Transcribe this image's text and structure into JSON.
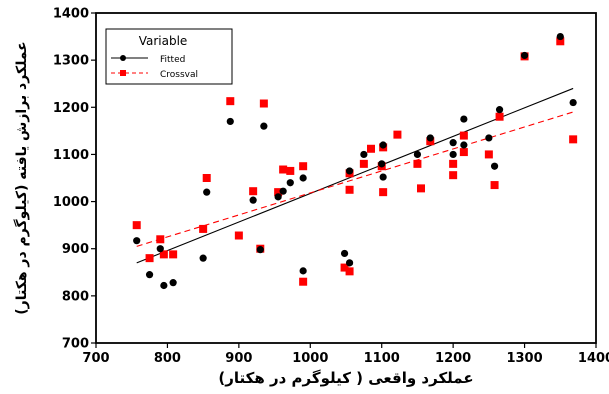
{
  "chart_data": {
    "type": "scatter",
    "xlabel": "عملکرد واقعی ( کیلوگرم در هکتار)",
    "ylabel": "عملکرد برازش یافته (کیلوگرم در هکتار)",
    "xlim": [
      700,
      1400
    ],
    "ylim": [
      700,
      1400
    ],
    "xticks": [
      700,
      800,
      900,
      1000,
      1100,
      1200,
      1300,
      1400
    ],
    "yticks": [
      700,
      800,
      900,
      1000,
      1100,
      1200,
      1300,
      1400
    ],
    "grid": false,
    "legend": {
      "title": "Variable",
      "position": "top-left"
    },
    "series": [
      {
        "name": "Fitted",
        "color": "#000000",
        "marker": "circle",
        "points": [
          [
            757,
            917
          ],
          [
            775,
            845
          ],
          [
            790,
            900
          ],
          [
            795,
            822
          ],
          [
            808,
            828
          ],
          [
            850,
            880
          ],
          [
            855,
            1020
          ],
          [
            888,
            1170
          ],
          [
            920,
            1003
          ],
          [
            930,
            898
          ],
          [
            935,
            1160
          ],
          [
            955,
            1010
          ],
          [
            962,
            1022
          ],
          [
            972,
            1040
          ],
          [
            990,
            853
          ],
          [
            990,
            1050
          ],
          [
            1048,
            890
          ],
          [
            1055,
            870
          ],
          [
            1055,
            1065
          ],
          [
            1075,
            1100
          ],
          [
            1100,
            1080
          ],
          [
            1102,
            1052
          ],
          [
            1102,
            1120
          ],
          [
            1150,
            1100
          ],
          [
            1168,
            1135
          ],
          [
            1200,
            1100
          ],
          [
            1200,
            1125
          ],
          [
            1215,
            1175
          ],
          [
            1215,
            1120
          ],
          [
            1250,
            1135
          ],
          [
            1258,
            1075
          ],
          [
            1265,
            1195
          ],
          [
            1300,
            1310
          ],
          [
            1350,
            1350
          ],
          [
            1368,
            1210
          ]
        ],
        "fit_line": {
          "style": "solid",
          "from": [
            757,
            870
          ],
          "to": [
            1368,
            1240
          ]
        }
      },
      {
        "name": "Crossval",
        "color": "#ff0000",
        "marker": "square",
        "points": [
          [
            757,
            950
          ],
          [
            775,
            880
          ],
          [
            790,
            920
          ],
          [
            795,
            888
          ],
          [
            808,
            888
          ],
          [
            850,
            942
          ],
          [
            855,
            1050
          ],
          [
            888,
            1213
          ],
          [
            900,
            928
          ],
          [
            920,
            1022
          ],
          [
            930,
            900
          ],
          [
            935,
            1208
          ],
          [
            955,
            1020
          ],
          [
            962,
            1068
          ],
          [
            972,
            1065
          ],
          [
            990,
            830
          ],
          [
            990,
            1075
          ],
          [
            1048,
            860
          ],
          [
            1055,
            852
          ],
          [
            1055,
            1025
          ],
          [
            1055,
            1060
          ],
          [
            1075,
            1080
          ],
          [
            1085,
            1112
          ],
          [
            1100,
            1075
          ],
          [
            1102,
            1020
          ],
          [
            1102,
            1115
          ],
          [
            1122,
            1142
          ],
          [
            1150,
            1080
          ],
          [
            1155,
            1028
          ],
          [
            1168,
            1128
          ],
          [
            1200,
            1056
          ],
          [
            1200,
            1080
          ],
          [
            1215,
            1105
          ],
          [
            1215,
            1140
          ],
          [
            1250,
            1100
          ],
          [
            1258,
            1035
          ],
          [
            1265,
            1180
          ],
          [
            1300,
            1308
          ],
          [
            1350,
            1340
          ],
          [
            1368,
            1132
          ]
        ],
        "fit_line": {
          "style": "dashed",
          "from": [
            757,
            905
          ],
          "to": [
            1368,
            1190
          ]
        }
      }
    ]
  }
}
